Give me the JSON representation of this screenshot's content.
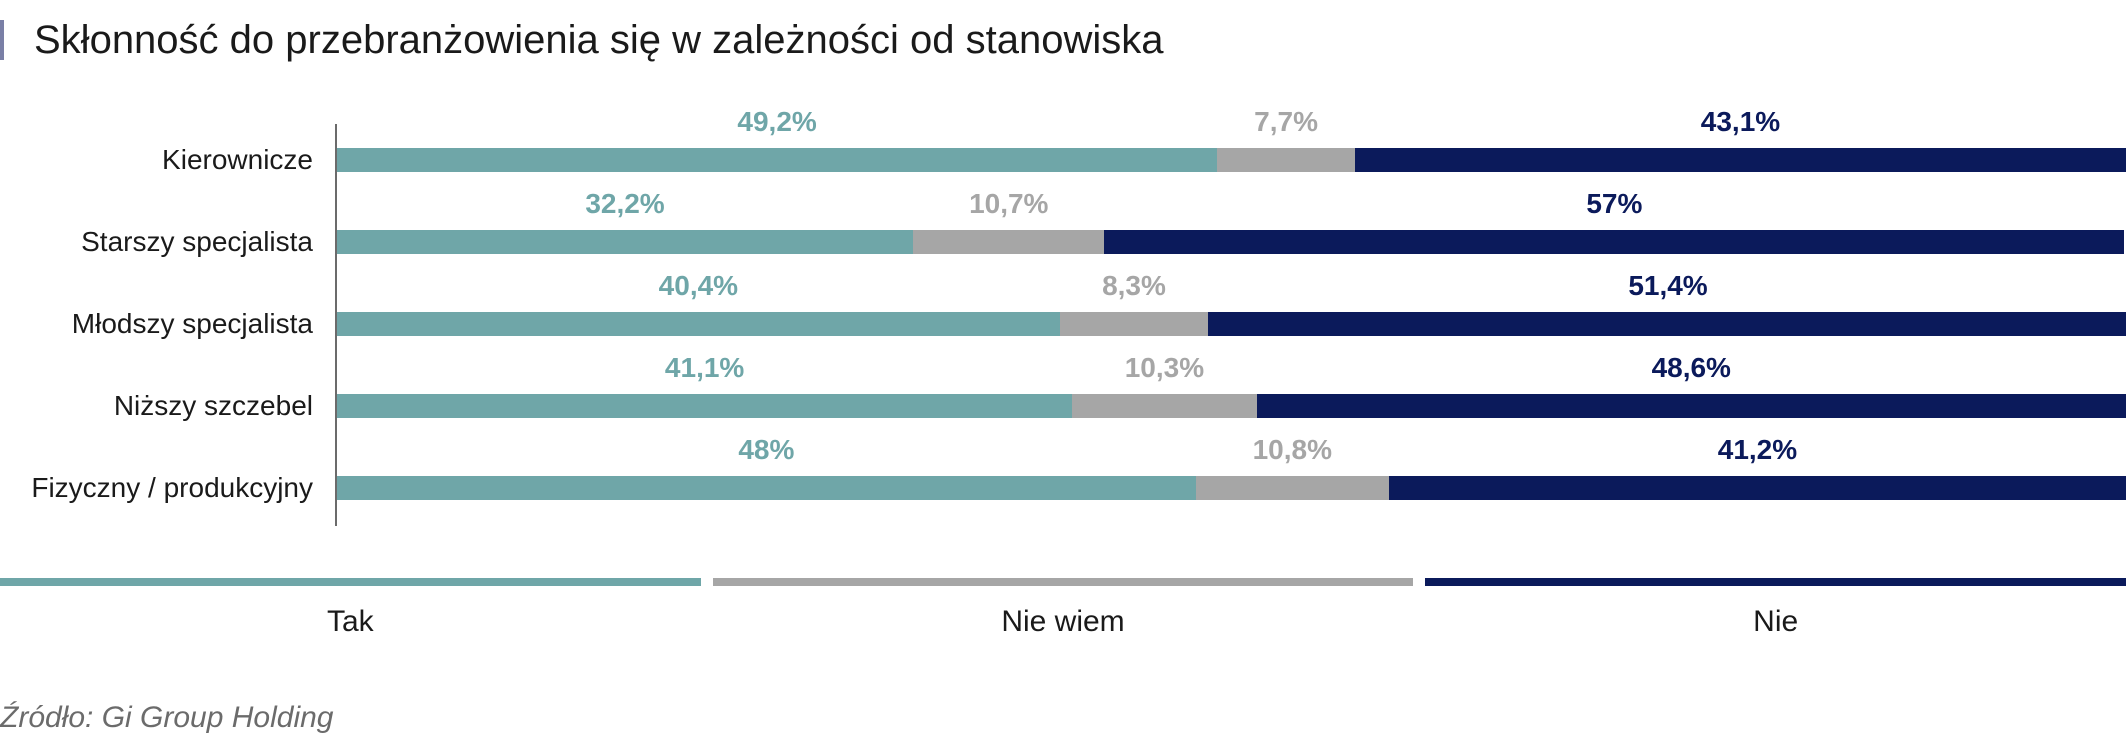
{
  "title": "Skłonność do przebranżowienia się w zależności od stanowiska",
  "source": "Źródło: Gi Group Holding",
  "colors": {
    "tak": "#6fa6a8",
    "nie_wiem": "#a6a6a6",
    "nie": "#0b1a5b",
    "accent": "#7a7fa6"
  },
  "legend": [
    {
      "label": "Tak",
      "color": "#6fa6a8"
    },
    {
      "label": "Nie wiem",
      "color": "#a6a6a6"
    },
    {
      "label": "Nie",
      "color": "#0b1a5b"
    }
  ],
  "chart_data": {
    "type": "bar",
    "orientation": "horizontal",
    "stacked": true,
    "percent_stacked": true,
    "title": "Skłonność do przebranżowienia się w zależności od stanowiska",
    "categories": [
      "Kierownicze",
      "Starszy specjalista",
      "Młodszy specjalista",
      "Niższy szczebel",
      "Fizyczny / produkcyjny"
    ],
    "series": [
      {
        "name": "Tak",
        "color": "#6fa6a8",
        "values": [
          49.2,
          32.2,
          40.4,
          41.1,
          48
        ],
        "labels": [
          "49,2%",
          "32,2%",
          "40,4%",
          "41,1%",
          "48%"
        ]
      },
      {
        "name": "Nie wiem",
        "color": "#a6a6a6",
        "values": [
          7.7,
          10.7,
          8.3,
          10.3,
          10.8
        ],
        "labels": [
          "7,7%",
          "10,7%",
          "8,3%",
          "10,3%",
          "10,8%"
        ]
      },
      {
        "name": "Nie",
        "color": "#0b1a5b",
        "values": [
          43.1,
          57,
          51.4,
          48.6,
          41.2
        ],
        "labels": [
          "43,1%",
          "57%",
          "51,4%",
          "48,6%",
          "41,2%"
        ]
      }
    ],
    "xlim": [
      0,
      100
    ],
    "grid": false,
    "legend_position": "bottom",
    "xlabel": "",
    "ylabel": ""
  }
}
